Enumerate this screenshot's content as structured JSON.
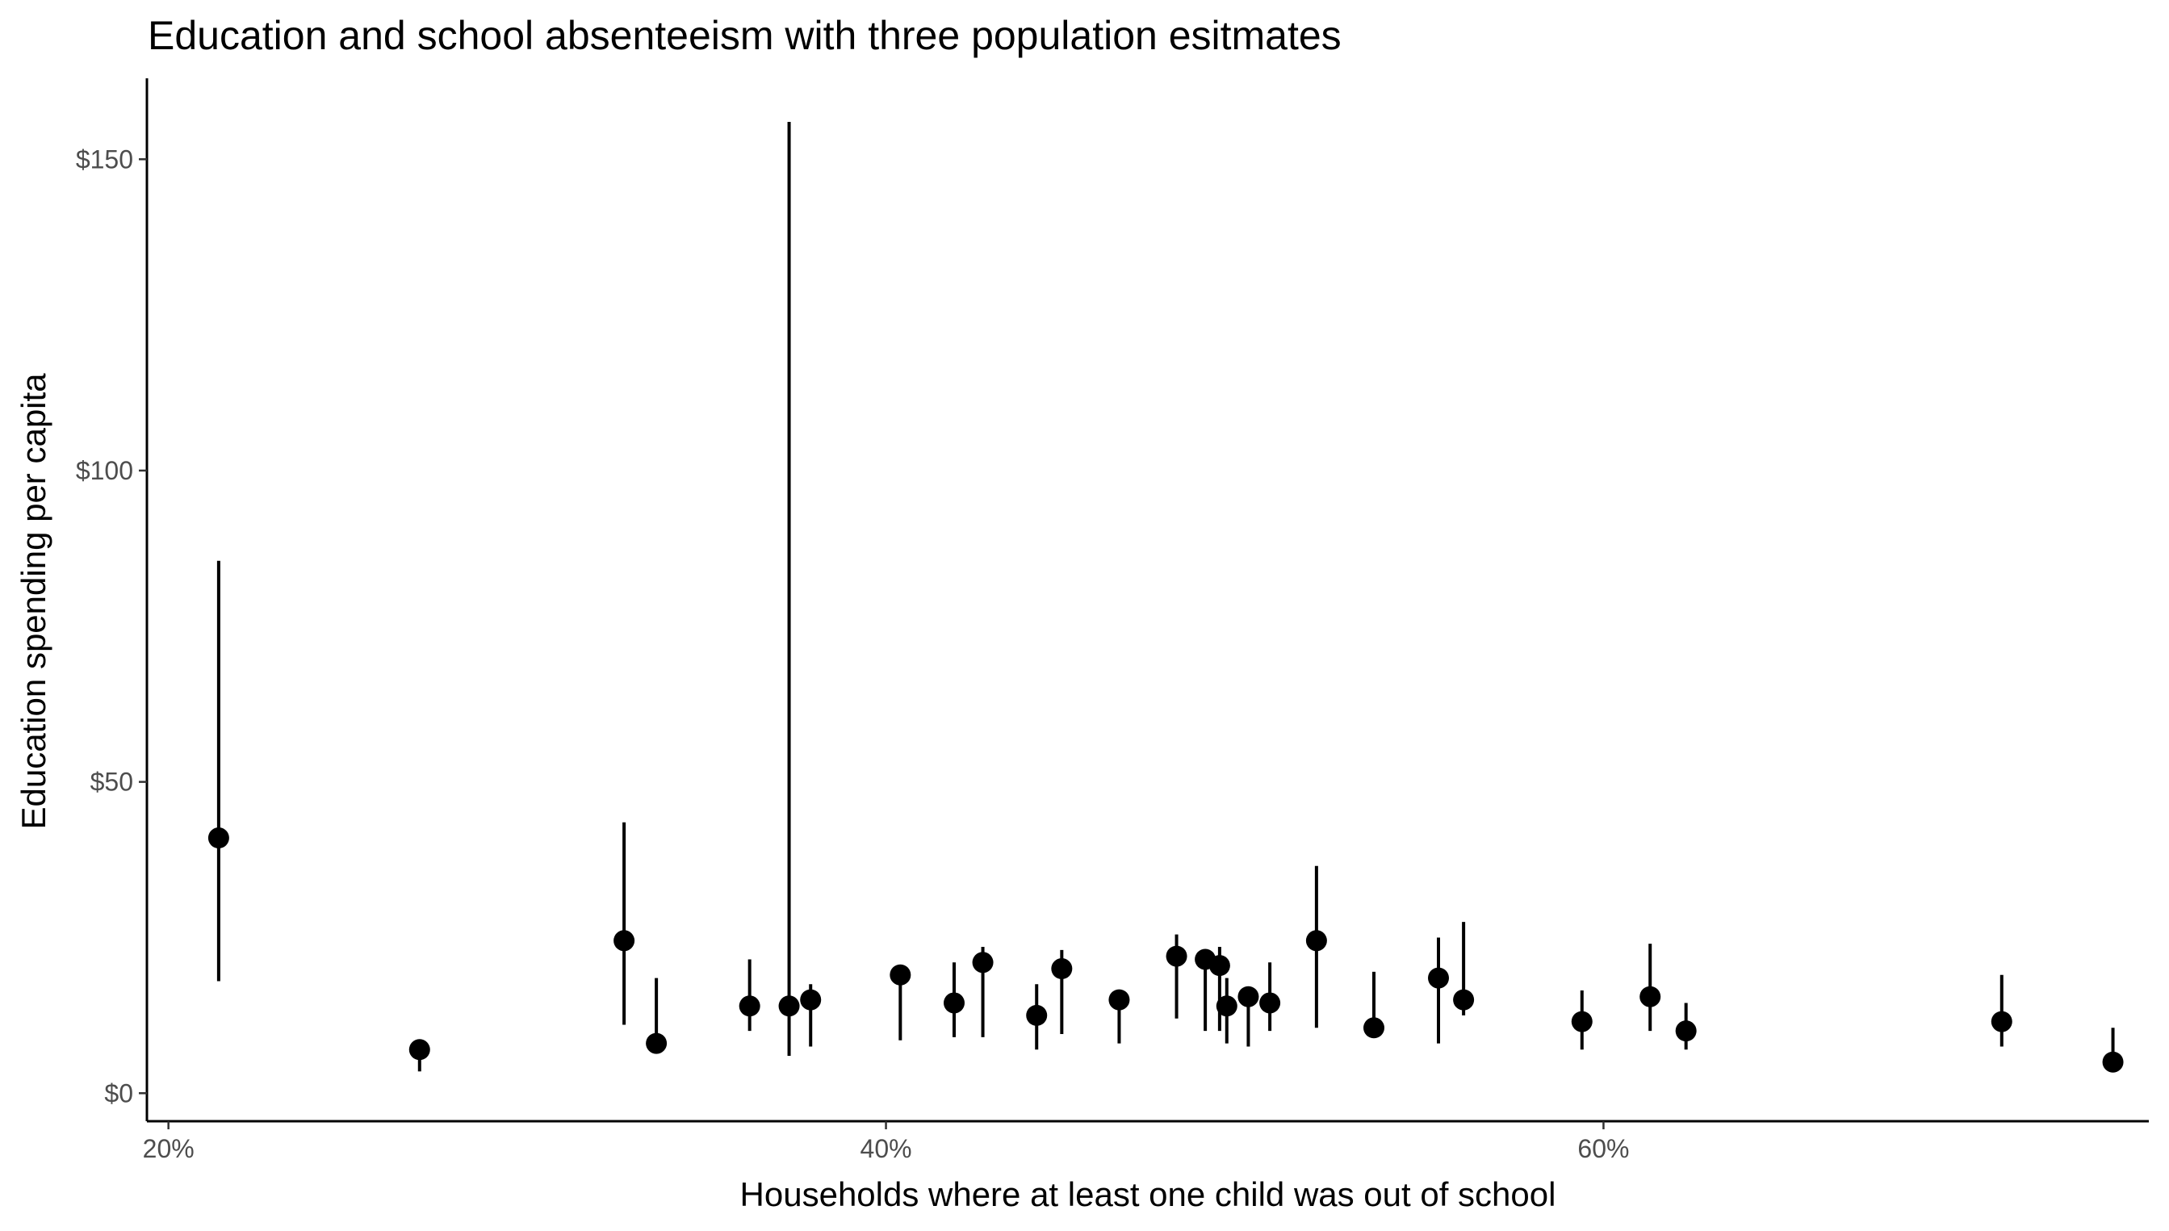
{
  "chart_data": {
    "type": "scatter",
    "title": "Education and school absenteeism with three population esitmates",
    "xlabel": "Households where at least one child was out of school",
    "ylabel": "Education spending per capita",
    "xlim": [
      0.194,
      0.752
    ],
    "ylim": [
      -4.5,
      163
    ],
    "x_ticks": [
      0.2,
      0.4,
      0.6
    ],
    "x_tick_labels": [
      "20%",
      "40%",
      "60%"
    ],
    "y_ticks": [
      0,
      50,
      100,
      150
    ],
    "y_tick_labels": [
      "$0",
      "$50",
      "$100",
      "$150"
    ],
    "grid": false,
    "legend": "none",
    "points": [
      {
        "x": 0.214,
        "y": 41.0,
        "low": 18.0,
        "high": 85.5
      },
      {
        "x": 0.27,
        "y": 7.0,
        "low": 3.5,
        "high": 8.5
      },
      {
        "x": 0.327,
        "y": 24.5,
        "low": 11.0,
        "high": 43.5
      },
      {
        "x": 0.336,
        "y": 8.0,
        "low": 6.5,
        "high": 18.5
      },
      {
        "x": 0.362,
        "y": 14.0,
        "low": 10.0,
        "high": 21.5
      },
      {
        "x": 0.373,
        "y": 14.0,
        "low": 6.0,
        "high": 156.0
      },
      {
        "x": 0.379,
        "y": 15.0,
        "low": 7.5,
        "high": 17.5
      },
      {
        "x": 0.404,
        "y": 19.0,
        "low": 8.5,
        "high": 19.5
      },
      {
        "x": 0.419,
        "y": 14.5,
        "low": 9.0,
        "high": 21.0
      },
      {
        "x": 0.427,
        "y": 21.0,
        "low": 9.0,
        "high": 23.5
      },
      {
        "x": 0.442,
        "y": 12.5,
        "low": 7.0,
        "high": 17.5
      },
      {
        "x": 0.449,
        "y": 20.0,
        "low": 9.5,
        "high": 23.0
      },
      {
        "x": 0.465,
        "y": 15.0,
        "low": 8.0,
        "high": 15.5
      },
      {
        "x": 0.481,
        "y": 22.0,
        "low": 12.0,
        "high": 25.5
      },
      {
        "x": 0.489,
        "y": 21.5,
        "low": 10.0,
        "high": 21.5
      },
      {
        "x": 0.493,
        "y": 20.5,
        "low": 10.0,
        "high": 23.5
      },
      {
        "x": 0.495,
        "y": 14.0,
        "low": 8.0,
        "high": 18.5
      },
      {
        "x": 0.501,
        "y": 15.5,
        "low": 7.5,
        "high": 17.0
      },
      {
        "x": 0.507,
        "y": 14.5,
        "low": 10.0,
        "high": 21.0
      },
      {
        "x": 0.52,
        "y": 24.5,
        "low": 10.5,
        "high": 36.5
      },
      {
        "x": 0.536,
        "y": 10.5,
        "low": 10.0,
        "high": 19.5
      },
      {
        "x": 0.554,
        "y": 18.5,
        "low": 8.0,
        "high": 25.0
      },
      {
        "x": 0.561,
        "y": 15.0,
        "low": 12.5,
        "high": 27.5
      },
      {
        "x": 0.594,
        "y": 11.5,
        "low": 7.0,
        "high": 16.5
      },
      {
        "x": 0.613,
        "y": 15.5,
        "low": 10.0,
        "high": 24.0
      },
      {
        "x": 0.623,
        "y": 10.0,
        "low": 7.0,
        "high": 14.5
      },
      {
        "x": 0.711,
        "y": 11.5,
        "low": 7.5,
        "high": 19.0
      },
      {
        "x": 0.742,
        "y": 5.0,
        "low": 4.5,
        "high": 10.5
      }
    ]
  }
}
